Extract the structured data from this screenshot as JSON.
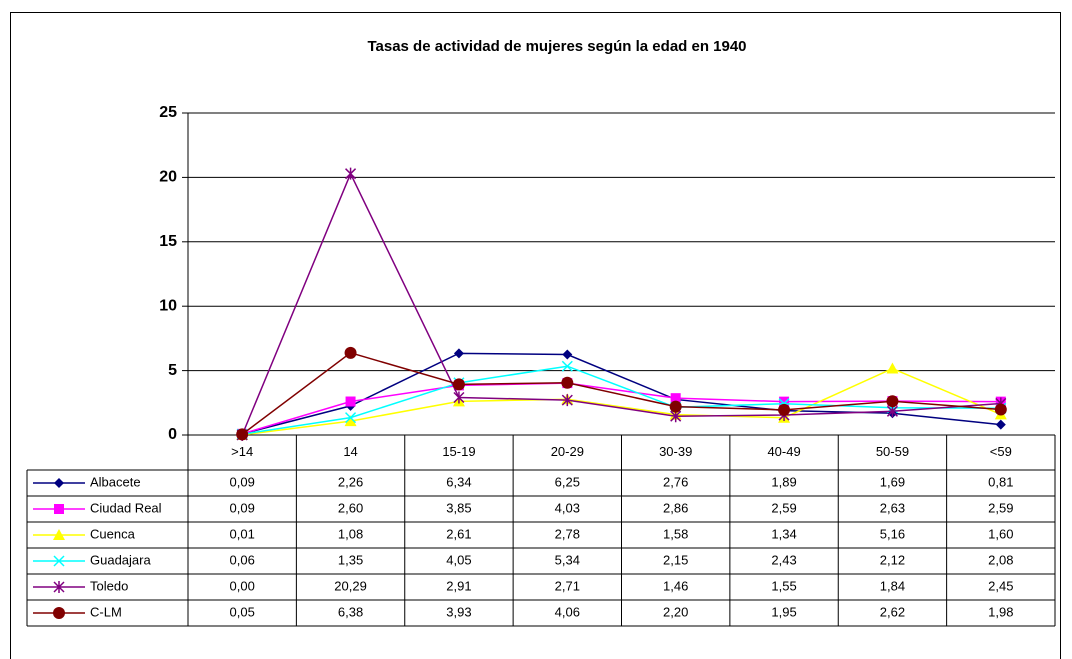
{
  "chart_data": {
    "type": "line",
    "title": "Tasas de actividad de mujeres según la edad en 1940",
    "categories": [
      ">14",
      "14",
      "15-19",
      "20-29",
      "30-39",
      "40-49",
      "50-59",
      "<59"
    ],
    "ylim": [
      0,
      25
    ],
    "yticks": [
      0,
      5,
      10,
      15,
      20,
      25
    ],
    "grid": true,
    "series": [
      {
        "name": "Albacete",
        "color": "#000080",
        "marker": "diamond",
        "values": [
          0.09,
          2.26,
          6.34,
          6.25,
          2.76,
          1.89,
          1.69,
          0.81
        ],
        "value_labels": [
          "0,09",
          "2,26",
          "6,34",
          "6,25",
          "2,76",
          "1,89",
          "1,69",
          "0,81"
        ]
      },
      {
        "name": "Ciudad Real",
        "color": "#ff00ff",
        "marker": "square",
        "values": [
          0.09,
          2.6,
          3.85,
          4.03,
          2.86,
          2.59,
          2.63,
          2.59
        ],
        "value_labels": [
          "0,09",
          "2,60",
          "3,85",
          "4,03",
          "2,86",
          "2,59",
          "2,63",
          "2,59"
        ]
      },
      {
        "name": "Cuenca",
        "color": "#ffff00",
        "marker": "triangle",
        "values": [
          0.01,
          1.08,
          2.61,
          2.78,
          1.58,
          1.34,
          5.16,
          1.6
        ],
        "value_labels": [
          "0,01",
          "1,08",
          "2,61",
          "2,78",
          "1,58",
          "1,34",
          "5,16",
          "1,60"
        ]
      },
      {
        "name": "Guadajara",
        "color": "#00ffff",
        "marker": "x",
        "values": [
          0.06,
          1.35,
          4.05,
          5.34,
          2.15,
          2.43,
          2.12,
          2.08
        ],
        "value_labels": [
          "0,06",
          "1,35",
          "4,05",
          "5,34",
          "2,15",
          "2,43",
          "2,12",
          "2,08"
        ]
      },
      {
        "name": "Toledo",
        "color": "#800080",
        "marker": "star",
        "values": [
          0.0,
          20.29,
          2.91,
          2.71,
          1.46,
          1.55,
          1.84,
          2.45
        ],
        "value_labels": [
          "0,00",
          "20,29",
          "2,91",
          "2,71",
          "1,46",
          "1,55",
          "1,84",
          "2,45"
        ]
      },
      {
        "name": "C-LM",
        "color": "#800000",
        "marker": "circle",
        "values": [
          0.05,
          6.38,
          3.93,
          4.06,
          2.2,
          1.95,
          2.62,
          1.98
        ],
        "value_labels": [
          "0,05",
          "6,38",
          "3,93",
          "4,06",
          "2,20",
          "1,95",
          "2,62",
          "1,98"
        ]
      }
    ]
  }
}
